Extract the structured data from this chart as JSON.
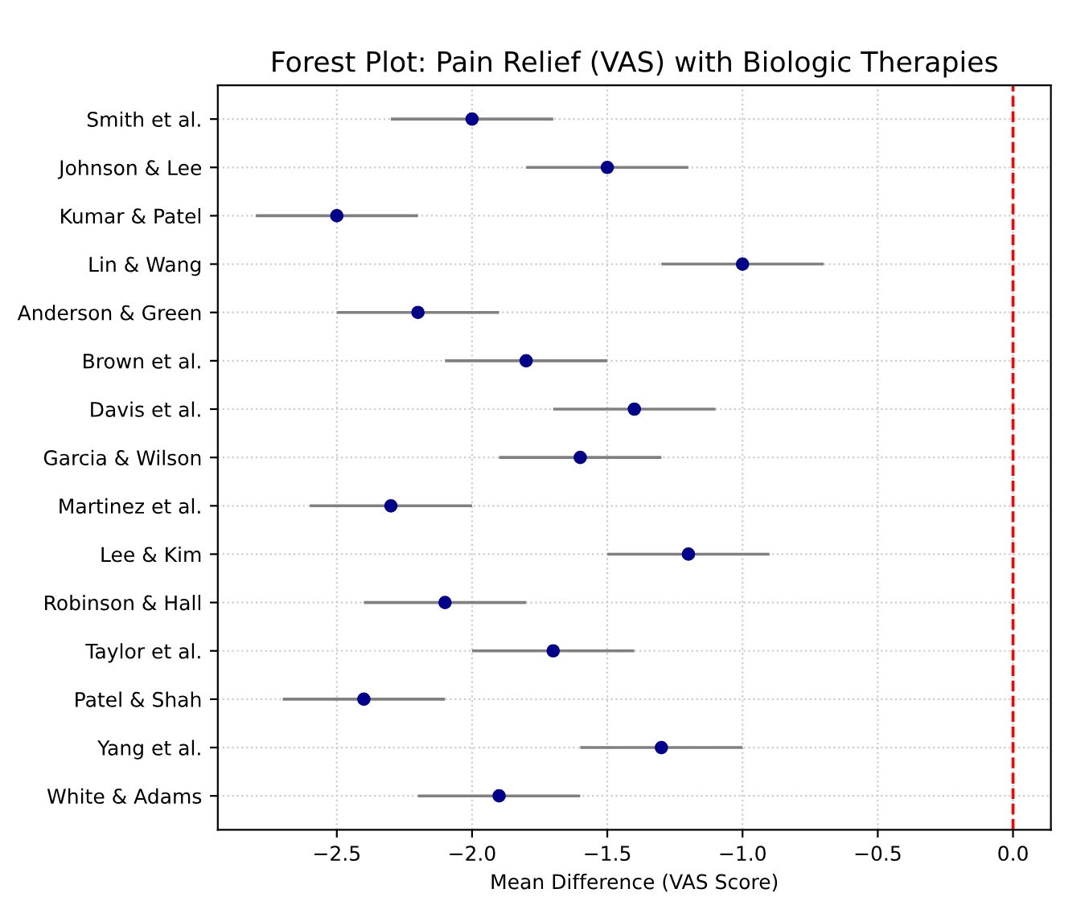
{
  "chart_data": {
    "type": "scatter",
    "orientation": "horizontal",
    "title": "Forest Plot: Pain Relief (VAS) with Biologic Therapies",
    "xlabel": "Mean Difference (VAS Score)",
    "categories": [
      "Smith et al.",
      "Johnson & Lee",
      "Kumar & Patel",
      "Lin & Wang",
      "Anderson & Green",
      "Brown et al.",
      "Davis et al.",
      "Garcia & Wilson",
      "Martinez et al.",
      "Lee & Kim",
      "Robinson & Hall",
      "Taylor et al.",
      "Patel & Shah",
      "Yang et al.",
      "White & Adams"
    ],
    "series": [
      {
        "color": "#00008b",
        "values": [
          -2.0,
          -1.5,
          -2.5,
          -1.0,
          -2.2,
          -1.8,
          -1.4,
          -1.6,
          -2.3,
          -1.2,
          -2.1,
          -1.7,
          -2.4,
          -1.3,
          -1.9
        ],
        "errors": [
          0.3,
          0.3,
          0.3,
          0.3,
          0.3,
          0.3,
          0.3,
          0.3,
          0.3,
          0.3,
          0.3,
          0.3,
          0.3,
          0.3,
          0.3
        ]
      }
    ],
    "xlim": [
      -2.94,
      0.14
    ],
    "xticks": [
      {
        "value": -2.5,
        "label": "−2.5"
      },
      {
        "value": -2.0,
        "label": "−2.0"
      },
      {
        "value": -1.5,
        "label": "−1.5"
      },
      {
        "value": -1.0,
        "label": "−1.0"
      },
      {
        "value": -0.5,
        "label": "−0.5"
      },
      {
        "value": 0.0,
        "label": "0.0"
      }
    ],
    "ref_lines": [
      {
        "axis": "x",
        "value": 0,
        "color": "#ff0000",
        "line_style": "dashed"
      }
    ],
    "grid": true,
    "marker": "circle",
    "legend": false
  }
}
